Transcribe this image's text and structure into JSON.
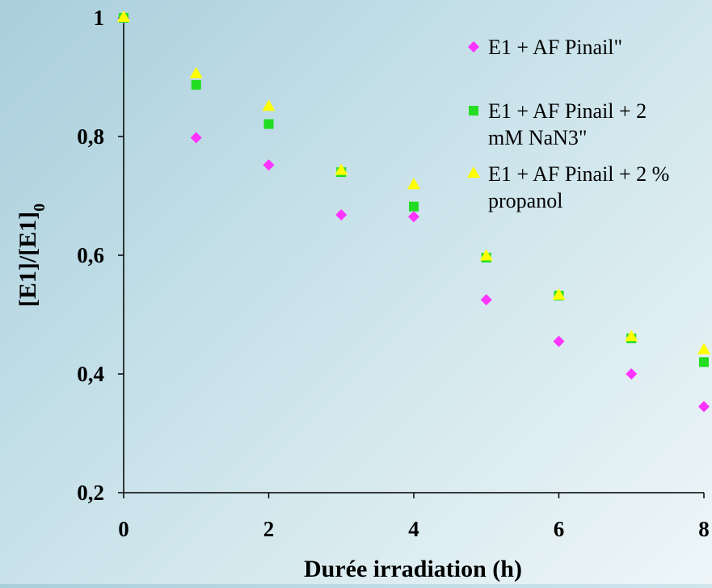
{
  "chart_data": {
    "type": "scatter",
    "xlabel": "Durée irradiation (h)",
    "ylabel": "[E1]/[E1]₀",
    "xlim": [
      0,
      8
    ],
    "ylim": [
      0.2,
      1
    ],
    "x_ticks": [
      "0",
      "2",
      "4",
      "6",
      "8"
    ],
    "y_ticks": [
      "0,2",
      "0,4",
      "0,6",
      "0,8",
      "1"
    ],
    "x_tick_values": [
      0,
      2,
      4,
      6,
      8
    ],
    "y_tick_values": [
      0.2,
      0.4,
      0.6,
      0.8,
      1.0
    ],
    "grid": false,
    "legend_position": "top-right",
    "series": [
      {
        "name": "E1 + AF Pinail\"",
        "marker": "diamond",
        "color": "#ff33ff",
        "x": [
          0,
          1,
          2,
          3,
          4,
          5,
          6,
          7,
          8
        ],
        "y": [
          1.0,
          0.798,
          0.752,
          0.668,
          0.665,
          0.525,
          0.455,
          0.4,
          0.345
        ]
      },
      {
        "name": "E1 + AF Pinail + 2 mM NaN3\"",
        "marker": "square",
        "color": "#22dd22",
        "x": [
          0,
          1,
          2,
          3,
          4,
          5,
          6,
          7,
          8
        ],
        "y": [
          1.0,
          0.887,
          0.821,
          0.74,
          0.682,
          0.596,
          0.532,
          0.46,
          0.42
        ]
      },
      {
        "name": "E1 + AF Pinail + 2 % propanol",
        "marker": "triangle",
        "color": "#ffff00",
        "x": [
          0,
          1,
          2,
          3,
          4,
          5,
          6,
          7,
          8
        ],
        "y": [
          1.0,
          0.905,
          0.85,
          0.742,
          0.718,
          0.598,
          0.532,
          0.462,
          0.44
        ]
      }
    ]
  }
}
